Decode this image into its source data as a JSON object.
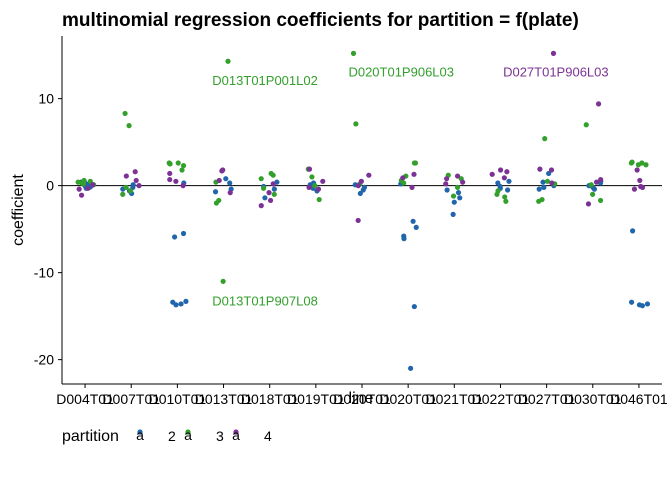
{
  "chart_data": {
    "type": "scatter",
    "title": "multinomial regression coefficients for partition = f(plate)",
    "xlabel": "line",
    "ylabel": "coefficient",
    "ylim": [
      -22.8,
      17.2
    ],
    "yticks": [
      -20,
      -10,
      0,
      10
    ],
    "categories": [
      "D004T01",
      "D007T01",
      "D010T01",
      "D013T01",
      "D018T01",
      "D019T01",
      "D020T01",
      "D020T01",
      "D021T01",
      "D022T01",
      "D027T01",
      "D030T01",
      "D046T01"
    ],
    "hline": 0,
    "legend": {
      "title": "partition",
      "placement": "bottom",
      "entries": [
        "2",
        "3",
        "4"
      ]
    },
    "series": [
      {
        "name": "2",
        "color": "#2166ac",
        "points": [
          [
            0,
            0.2
          ],
          [
            0,
            -0.3
          ],
          [
            0,
            0.1
          ],
          [
            0,
            0.4
          ],
          [
            0,
            -0.1
          ],
          [
            0,
            -0.2
          ],
          [
            0,
            0.3
          ],
          [
            0,
            -0.1
          ],
          [
            1,
            -0.9
          ],
          [
            1,
            -0.4
          ],
          [
            1,
            -0.2
          ],
          [
            1,
            0.1
          ],
          [
            1,
            -0.6
          ],
          [
            2,
            -5.5
          ],
          [
            2,
            -5.9
          ],
          [
            2,
            -13.7
          ],
          [
            2,
            -13.4
          ],
          [
            2,
            -13.3
          ],
          [
            2,
            -13.6
          ],
          [
            2,
            0.3
          ],
          [
            3,
            0.3
          ],
          [
            3,
            -0.7
          ],
          [
            3,
            0.8
          ],
          [
            3,
            -0.4
          ],
          [
            4,
            -1.4
          ],
          [
            4,
            -0.4
          ],
          [
            4,
            -0.1
          ],
          [
            4,
            0.4
          ],
          [
            5,
            0.1
          ],
          [
            5,
            -0.3
          ],
          [
            5,
            -0.6
          ],
          [
            5,
            0.3
          ],
          [
            6,
            -0.9
          ],
          [
            6,
            -0.5
          ],
          [
            6,
            0.1
          ],
          [
            6,
            -0.2
          ],
          [
            7,
            -4.8
          ],
          [
            7,
            -5.8
          ],
          [
            7,
            -6.1
          ],
          [
            7,
            -4.1
          ],
          [
            7,
            -13.9
          ],
          [
            7,
            -21.0
          ],
          [
            7,
            0.2
          ],
          [
            8,
            -1.9
          ],
          [
            8,
            -1.4
          ],
          [
            8,
            -0.8
          ],
          [
            8,
            -0.5
          ],
          [
            8,
            -3.3
          ],
          [
            9,
            0.5
          ],
          [
            9,
            -0.5
          ],
          [
            9,
            -0.1
          ],
          [
            9,
            0.3
          ],
          [
            9,
            -0.3
          ],
          [
            10,
            -0.4
          ],
          [
            10,
            0.0
          ],
          [
            10,
            0.4
          ],
          [
            10,
            -0.2
          ],
          [
            10,
            1.4
          ],
          [
            11,
            -0.4
          ],
          [
            11,
            -0.2
          ],
          [
            11,
            0.0
          ],
          [
            11,
            0.3
          ],
          [
            11,
            0.5
          ],
          [
            12,
            -5.2
          ],
          [
            12,
            -13.8
          ],
          [
            12,
            -13.4
          ],
          [
            12,
            -13.6
          ],
          [
            12,
            -13.7
          ]
        ]
      },
      {
        "name": "3",
        "color": "#33a02c",
        "points": [
          [
            0,
            0.1
          ],
          [
            0,
            0.4
          ],
          [
            0,
            0.6
          ],
          [
            0,
            0.5
          ],
          [
            0,
            0.2
          ],
          [
            0,
            0.3
          ],
          [
            1,
            8.3
          ],
          [
            1,
            6.9
          ],
          [
            1,
            -0.6
          ],
          [
            1,
            -1.0
          ],
          [
            1,
            -0.2
          ],
          [
            2,
            2.6
          ],
          [
            2,
            2.3
          ],
          [
            2,
            1.8
          ],
          [
            2,
            2.6
          ],
          [
            2,
            2.5
          ],
          [
            3,
            14.3
          ],
          [
            3,
            -11.0
          ],
          [
            3,
            -1.7
          ],
          [
            3,
            -2.0
          ],
          [
            3,
            0.4
          ],
          [
            4,
            0.8
          ],
          [
            4,
            1.4
          ],
          [
            4,
            -0.3
          ],
          [
            4,
            -1.0
          ],
          [
            4,
            1.2
          ],
          [
            5,
            1.0
          ],
          [
            5,
            1.9
          ],
          [
            5,
            -1.6
          ],
          [
            5,
            0.0
          ],
          [
            6,
            15.2
          ],
          [
            6,
            7.1
          ],
          [
            6,
            0.2
          ],
          [
            7,
            2.6
          ],
          [
            7,
            1.1
          ],
          [
            7,
            0.3
          ],
          [
            7,
            0.6
          ],
          [
            7,
            2.6
          ],
          [
            8,
            -1.2
          ],
          [
            8,
            -0.2
          ],
          [
            8,
            0.8
          ],
          [
            8,
            1.2
          ],
          [
            9,
            -1.0
          ],
          [
            9,
            -1.8
          ],
          [
            9,
            -1.3
          ],
          [
            9,
            -0.6
          ],
          [
            10,
            5.4
          ],
          [
            10,
            -1.6
          ],
          [
            10,
            -1.8
          ],
          [
            10,
            0.5
          ],
          [
            10,
            0.2
          ],
          [
            11,
            7.0
          ],
          [
            11,
            -1.0
          ],
          [
            11,
            -1.7
          ],
          [
            11,
            0.1
          ],
          [
            12,
            2.6
          ],
          [
            12,
            2.7
          ],
          [
            12,
            2.4
          ],
          [
            12,
            2.6
          ],
          [
            12,
            2.4
          ]
        ]
      },
      {
        "name": "4",
        "color": "#7b3294",
        "points": [
          [
            0,
            -0.3
          ],
          [
            0,
            -1.1
          ],
          [
            0,
            -0.4
          ],
          [
            0,
            0.1
          ],
          [
            1,
            1.6
          ],
          [
            1,
            1.1
          ],
          [
            1,
            0.6
          ],
          [
            1,
            0.0
          ],
          [
            2,
            0.7
          ],
          [
            2,
            0.5
          ],
          [
            2,
            1.4
          ],
          [
            2,
            0.0
          ],
          [
            3,
            1.7
          ],
          [
            3,
            1.8
          ],
          [
            3,
            0.6
          ],
          [
            3,
            -0.8
          ],
          [
            4,
            -1.7
          ],
          [
            4,
            -2.3
          ],
          [
            4,
            -0.8
          ],
          [
            4,
            0.2
          ],
          [
            5,
            1.9
          ],
          [
            5,
            0.5
          ],
          [
            5,
            -0.2
          ],
          [
            5,
            -0.4
          ],
          [
            6,
            -4.0
          ],
          [
            6,
            1.2
          ],
          [
            6,
            0.5
          ],
          [
            6,
            0.0
          ],
          [
            7,
            -0.2
          ],
          [
            7,
            1.3
          ],
          [
            7,
            0.9
          ],
          [
            8,
            0.4
          ],
          [
            8,
            0.2
          ],
          [
            8,
            0.8
          ],
          [
            8,
            1.1
          ],
          [
            9,
            1.8
          ],
          [
            9,
            1.3
          ],
          [
            9,
            0.9
          ],
          [
            9,
            1.6
          ],
          [
            10,
            15.2
          ],
          [
            10,
            1.8
          ],
          [
            10,
            1.9
          ],
          [
            10,
            0.3
          ],
          [
            11,
            9.4
          ],
          [
            11,
            0.4
          ],
          [
            11,
            -2.1
          ],
          [
            11,
            0.7
          ],
          [
            12,
            1.8
          ],
          [
            12,
            0.6
          ],
          [
            12,
            -0.1
          ],
          [
            12,
            -0.4
          ],
          [
            12,
            -0.2
          ]
        ]
      }
    ],
    "annotations": [
      {
        "text": "D013T01P001L02",
        "x": 3.9,
        "y": 12.0,
        "series": "3"
      },
      {
        "text": "D013T01P907L08",
        "x": 3.9,
        "y": -13.3,
        "series": "3"
      },
      {
        "text": "D020T01P906L03",
        "x": 6.85,
        "y": 13.0,
        "series": "3"
      },
      {
        "text": "D027T01P906L03",
        "x": 10.2,
        "y": 13.0,
        "series": "4"
      }
    ]
  }
}
